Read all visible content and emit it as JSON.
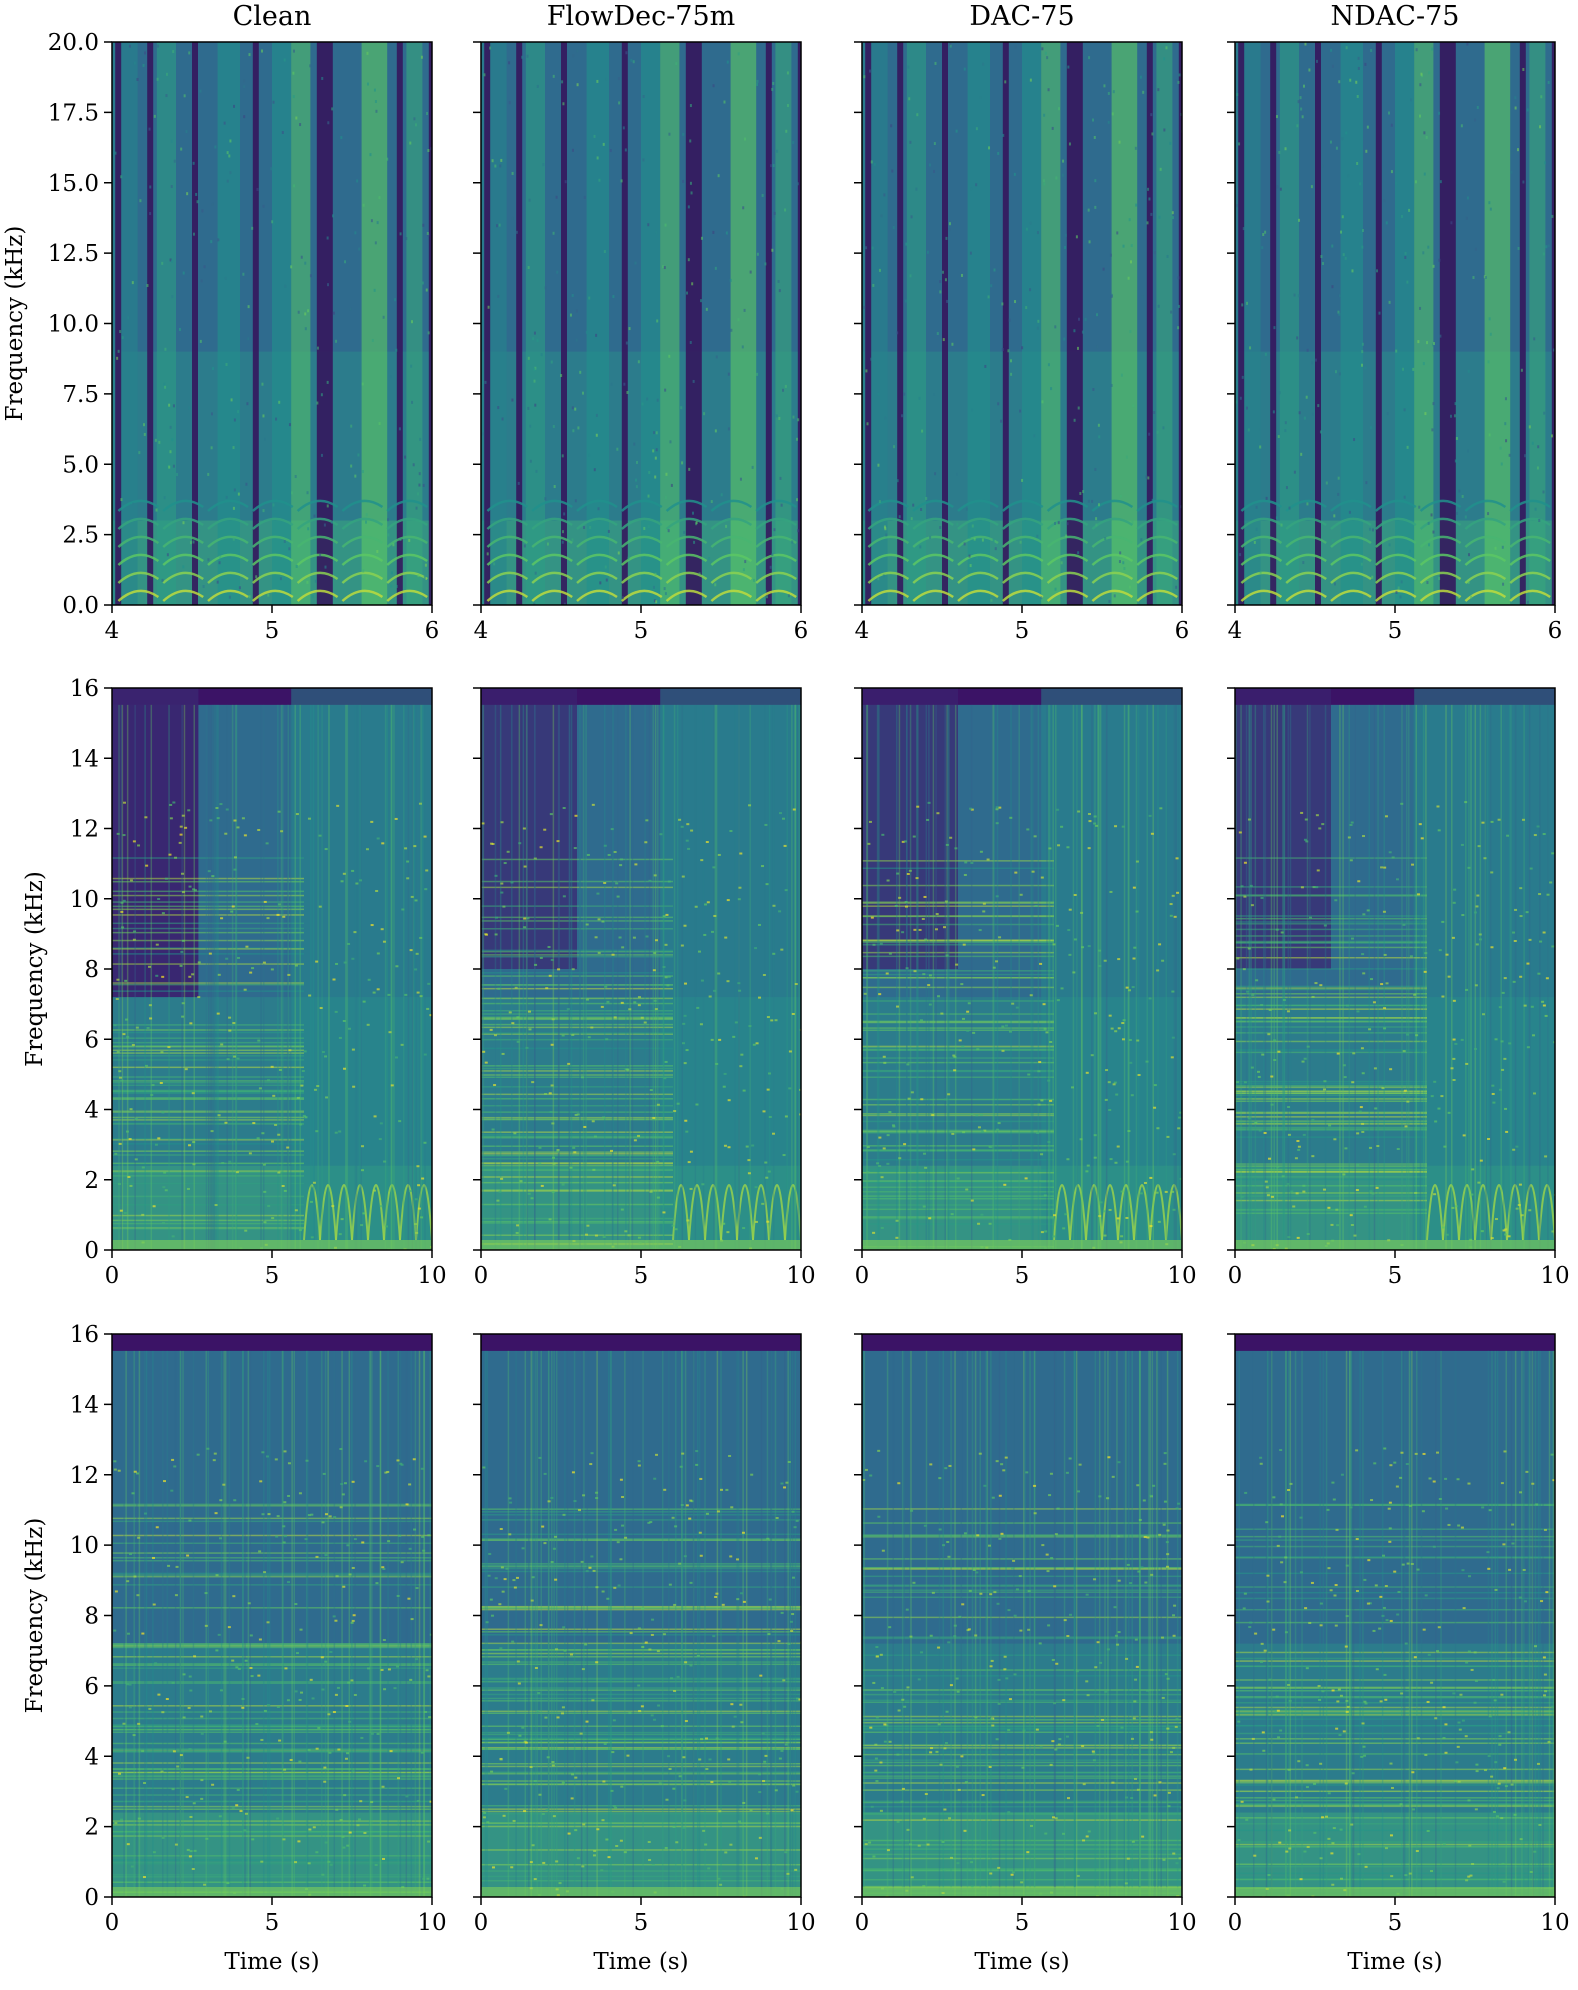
{
  "figure": {
    "column_titles": [
      "Clean",
      "FlowDec-75m",
      "DAC-75",
      "NDAC-75"
    ],
    "ylabel": "Frequency (kHz)",
    "xlabel": "Time (s)"
  },
  "colors": {
    "colormap": "viridis",
    "low": "#440154",
    "mid": "#21918c",
    "high": "#fde725"
  },
  "chart_data": [
    {
      "type": "heatmap",
      "row": 0,
      "columns": [
        "Clean",
        "FlowDec-75m",
        "DAC-75",
        "NDAC-75"
      ],
      "kind": "speech spectrogram",
      "xlim": [
        4,
        6
      ],
      "ylim": [
        0,
        20
      ],
      "xticks": [
        4,
        5,
        6
      ],
      "xtick_labels": [
        "4",
        "5",
        "6"
      ],
      "yticks": [
        0,
        2.5,
        5,
        7.5,
        10,
        12.5,
        15,
        17.5,
        20
      ],
      "ytick_labels": [
        "0.0",
        "2.5",
        "5.0",
        "7.5",
        "10.0",
        "12.5",
        "15.0",
        "17.5",
        "20.0"
      ],
      "xlabel": "",
      "ylabel": "Frequency (kHz)"
    },
    {
      "type": "heatmap",
      "row": 1,
      "columns": [
        "Clean",
        "FlowDec-75m",
        "DAC-75",
        "NDAC-75"
      ],
      "kind": "music spectrogram",
      "xlim": [
        0,
        10
      ],
      "ylim": [
        0,
        16
      ],
      "xticks": [
        0,
        5,
        10
      ],
      "xtick_labels": [
        "0",
        "5",
        "10"
      ],
      "yticks": [
        0,
        2,
        4,
        6,
        8,
        10,
        12,
        14,
        16
      ],
      "ytick_labels": [
        "0",
        "2",
        "4",
        "6",
        "8",
        "10",
        "12",
        "14",
        "16"
      ],
      "xlabel": "",
      "ylabel": "Frequency (kHz)"
    },
    {
      "type": "heatmap",
      "row": 2,
      "columns": [
        "Clean",
        "FlowDec-75m",
        "DAC-75",
        "NDAC-75"
      ],
      "kind": "music spectrogram",
      "xlim": [
        0,
        10
      ],
      "ylim": [
        0,
        16
      ],
      "xticks": [
        0,
        5,
        10
      ],
      "xtick_labels": [
        "0",
        "5",
        "10"
      ],
      "yticks": [
        0,
        2,
        4,
        6,
        8,
        10,
        12,
        14,
        16
      ],
      "ytick_labels": [
        "0",
        "2",
        "4",
        "6",
        "8",
        "10",
        "12",
        "14",
        "16"
      ],
      "xlabel": "Time (s)",
      "ylabel": "Frequency (kHz)"
    }
  ]
}
